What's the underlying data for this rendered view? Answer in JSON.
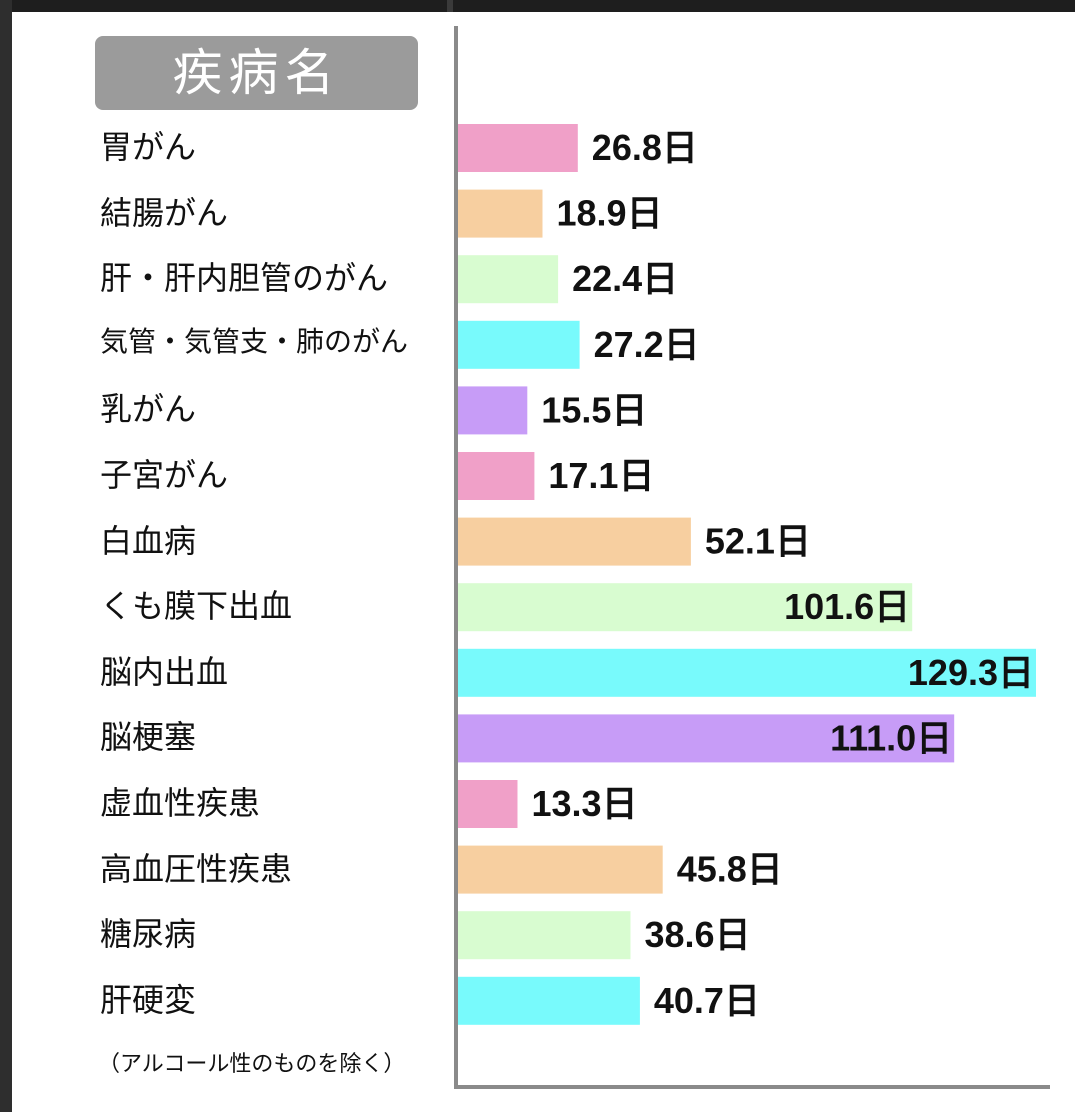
{
  "chart_data": {
    "type": "bar",
    "orientation": "horizontal",
    "header": "疾病名",
    "unit": "日",
    "categories": [
      "胃がん",
      "結腸がん",
      "肝・肝内胆管のがん",
      "気管・気管支・肺のがん",
      "乳がん",
      "子宮がん",
      "白血病",
      "くも膜下出血",
      "脳内出血",
      "脳梗塞",
      "虚血性疾患",
      "高血圧性疾患",
      "糖尿病",
      "肝硬変"
    ],
    "values": [
      26.8,
      18.9,
      22.4,
      27.2,
      15.5,
      17.1,
      52.1,
      101.6,
      129.3,
      111.0,
      13.3,
      45.8,
      38.6,
      40.7
    ],
    "value_labels": [
      "26.8日",
      "18.9日",
      "22.4日",
      "27.2日",
      "15.5日",
      "17.1日",
      "52.1日",
      "101.6日",
      "129.3日",
      "111.0日",
      "13.3日",
      "45.8日",
      "38.6日",
      "40.7日"
    ],
    "colors": [
      "#f0a0c8",
      "#f7cfa0",
      "#d8fcd0",
      "#78fafc",
      "#c79cf7"
    ],
    "footnote": "（アルコール性のものを除く）",
    "grid": false,
    "legend": "none"
  }
}
